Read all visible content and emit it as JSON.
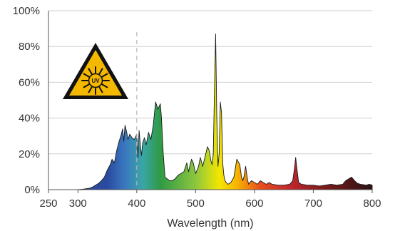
{
  "chart_data": {
    "type": "area",
    "xlabel": "Wavelength (nm)",
    "ylabel": "",
    "xlim": [
      250,
      800
    ],
    "ylim": [
      0,
      100
    ],
    "x_ticks": [
      {
        "value": 250,
        "label": "250"
      },
      {
        "value": 300,
        "label": "300"
      },
      {
        "value": 400,
        "label": "400"
      },
      {
        "value": 500,
        "label": "500"
      },
      {
        "value": 600,
        "label": "600"
      },
      {
        "value": 700,
        "label": "700"
      },
      {
        "value": 800,
        "label": "800"
      }
    ],
    "y_ticks": [
      {
        "value": 0,
        "label": "0%"
      },
      {
        "value": 20,
        "label": "20%"
      },
      {
        "value": 40,
        "label": "40%"
      },
      {
        "value": 60,
        "label": "60%"
      },
      {
        "value": 80,
        "label": "80%"
      },
      {
        "value": 100,
        "label": "100%"
      }
    ],
    "grid": "horizontal",
    "reference_line": {
      "x": 400,
      "style": "dashed"
    },
    "warning_icon": {
      "icon": "uv-warning-triangle-icon",
      "text": "UV",
      "color": "#f5b800"
    },
    "spectrum_colors": [
      {
        "x": 350,
        "color": "#2a4a9f"
      },
      {
        "x": 380,
        "color": "#3a78c0"
      },
      {
        "x": 410,
        "color": "#3aa6a8"
      },
      {
        "x": 440,
        "color": "#2f9a45"
      },
      {
        "x": 500,
        "color": "#8cc63f"
      },
      {
        "x": 540,
        "color": "#f3e600"
      },
      {
        "x": 570,
        "color": "#f7b500"
      },
      {
        "x": 610,
        "color": "#e94e1b"
      },
      {
        "x": 660,
        "color": "#c1272d"
      },
      {
        "x": 720,
        "color": "#7b1a1a"
      },
      {
        "x": 800,
        "color": "#2b1414"
      }
    ],
    "series": [
      {
        "x": [
          260,
          300,
          310,
          320,
          325,
          330,
          335,
          340,
          345,
          350,
          355,
          358,
          362,
          366,
          370,
          373,
          376,
          378,
          380,
          383,
          385,
          388,
          392,
          396,
          400,
          402,
          404,
          406,
          408,
          410,
          413,
          416,
          420,
          424,
          428,
          432,
          436,
          440,
          442,
          445,
          448,
          452,
          456,
          460,
          465,
          470,
          475,
          480,
          485,
          488,
          490,
          493,
          496,
          500,
          505,
          508,
          512,
          515,
          518,
          520,
          523,
          526,
          528,
          530,
          532,
          534,
          536,
          538,
          540,
          542,
          544,
          546,
          548,
          550,
          552,
          555,
          560,
          565,
          570,
          575,
          578,
          580,
          582,
          585,
          588,
          590,
          592,
          595,
          600,
          605,
          610,
          615,
          620,
          625,
          630,
          640,
          650,
          660,
          665,
          668,
          670,
          672,
          675,
          680,
          690,
          700,
          710,
          720,
          730,
          740,
          750,
          755,
          760,
          765,
          770,
          775,
          780,
          790,
          795,
          800
        ],
        "y": [
          0,
          0,
          0.3,
          0.8,
          1.5,
          2.5,
          3.5,
          5,
          7,
          11,
          14,
          17,
          15,
          22,
          27,
          30,
          34,
          27,
          36,
          32,
          28,
          31,
          29,
          28,
          31,
          18,
          33,
          25,
          19,
          26,
          29,
          25,
          32,
          28,
          36,
          49,
          45,
          48,
          40,
          20,
          7,
          6,
          5,
          5,
          6,
          8,
          9,
          10,
          15,
          10,
          13,
          17,
          15,
          9,
          13,
          18,
          13,
          17,
          21,
          24,
          22,
          16,
          14,
          20,
          55,
          87,
          40,
          13,
          20,
          49,
          43,
          15,
          8,
          5,
          4,
          3,
          4,
          7,
          17,
          14,
          7,
          5,
          7,
          13,
          6,
          3,
          4,
          5,
          4,
          3,
          5,
          4,
          3,
          4,
          3,
          2.5,
          2.5,
          3,
          5,
          12,
          18,
          12,
          4,
          3,
          2.5,
          2.5,
          2,
          2.5,
          3,
          2.5,
          3,
          5,
          6,
          7,
          5,
          3.5,
          3,
          2.5,
          3,
          2.5
        ]
      }
    ]
  }
}
